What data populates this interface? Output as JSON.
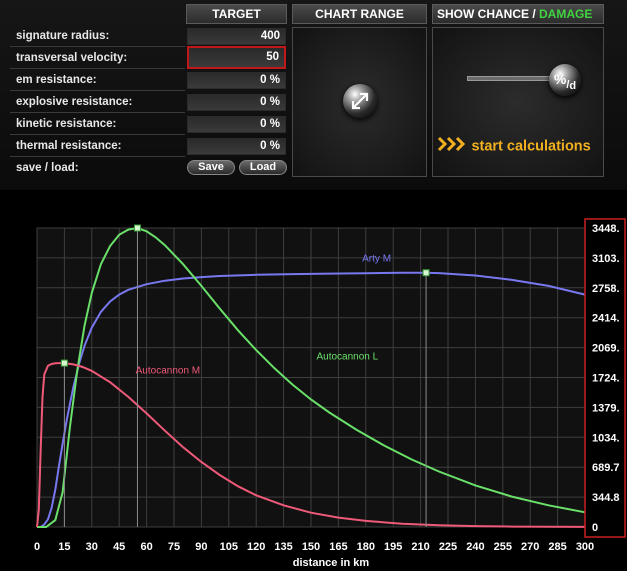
{
  "target": {
    "header": "TARGET",
    "rows": [
      {
        "label": "signature radius:",
        "value": "400"
      },
      {
        "label": "transversal velocity:",
        "value": "50"
      },
      {
        "label": "em resistance:",
        "value": "0 %"
      },
      {
        "label": "explosive resistance:",
        "value": "0 %"
      },
      {
        "label": "kinetic resistance:",
        "value": "0 %"
      },
      {
        "label": "thermal resistance:",
        "value": "0 %"
      }
    ],
    "save_load_label": "save / load:",
    "save_label": "Save",
    "load_label": "Load"
  },
  "chart_range": {
    "header": "CHART RANGE"
  },
  "show": {
    "header_prefix": "SHOW CHANCE / ",
    "header_highlight": "DAMAGE",
    "highlight_color": "#3fd43f",
    "toggle_glyph": "%",
    "toggle_sub": "d",
    "start_label": "start calculations",
    "start_color": "#f0b020"
  },
  "chart_data": {
    "type": "line",
    "xlabel": "distance in km",
    "x_ticks": [
      0,
      15,
      30,
      45,
      60,
      75,
      90,
      105,
      120,
      135,
      150,
      165,
      180,
      195,
      210,
      225,
      240,
      255,
      270,
      285,
      300
    ],
    "xlim": [
      0,
      300
    ],
    "y_ticks": [
      "3448.",
      "3103.",
      "2758.",
      "2414.",
      "2069.",
      "1724.",
      "1379.",
      "1034.",
      "689.7",
      "344.8",
      "0"
    ],
    "ylim": [
      0,
      3448
    ],
    "grid": true,
    "series": [
      {
        "name": "Arty M",
        "color": "#7878f0",
        "label_at": [
          178,
          3060
        ],
        "x": [
          0,
          2,
          4,
          6,
          8,
          10,
          12,
          14,
          16,
          18,
          20,
          23,
          26,
          30,
          35,
          40,
          45,
          50,
          60,
          70,
          80,
          90,
          100,
          120,
          140,
          160,
          180,
          200,
          213,
          220,
          240,
          260,
          280,
          300
        ],
        "y": [
          0,
          0,
          30,
          90,
          220,
          430,
          700,
          960,
          1200,
          1420,
          1620,
          1880,
          2090,
          2300,
          2480,
          2600,
          2680,
          2735,
          2800,
          2840,
          2866,
          2882,
          2894,
          2908,
          2916,
          2922,
          2927,
          2931,
          2932,
          2928,
          2900,
          2850,
          2780,
          2680
        ]
      },
      {
        "name": "Autocannon L",
        "color": "#6ae06a",
        "label_at": [
          153,
          1930
        ],
        "x": [
          0,
          5,
          10,
          14,
          18,
          22,
          26,
          30,
          35,
          40,
          45,
          50,
          55,
          60,
          65,
          70,
          80,
          90,
          100,
          110,
          120,
          130,
          140,
          150,
          160,
          175,
          190,
          205,
          220,
          240,
          260,
          280,
          300
        ],
        "y": [
          0,
          0,
          80,
          400,
          1150,
          1800,
          2320,
          2700,
          3030,
          3240,
          3370,
          3430,
          3448,
          3410,
          3340,
          3250,
          3030,
          2780,
          2520,
          2270,
          2040,
          1830,
          1640,
          1470,
          1320,
          1120,
          940,
          780,
          640,
          480,
          350,
          250,
          170
        ]
      },
      {
        "name": "Autocannon M",
        "color": "#ee5a78",
        "label_at": [
          54,
          1770
        ],
        "x": [
          0,
          1,
          2,
          3,
          4,
          6,
          8,
          10,
          12,
          15,
          20,
          25,
          30,
          40,
          50,
          60,
          70,
          80,
          90,
          100,
          110,
          120,
          135,
          150,
          165,
          180,
          200,
          220,
          240,
          260,
          280,
          300
        ],
        "y": [
          0,
          200,
          900,
          1500,
          1760,
          1860,
          1880,
          1888,
          1890,
          1890,
          1875,
          1845,
          1800,
          1670,
          1500,
          1310,
          1110,
          920,
          750,
          600,
          470,
          365,
          250,
          165,
          108,
          70,
          38,
          20,
          10,
          5,
          2,
          1
        ]
      }
    ],
    "markers": [
      {
        "x": 15,
        "y": 1890
      },
      {
        "x": 55,
        "y": 3448
      },
      {
        "x": 213,
        "y": 2932
      }
    ]
  }
}
